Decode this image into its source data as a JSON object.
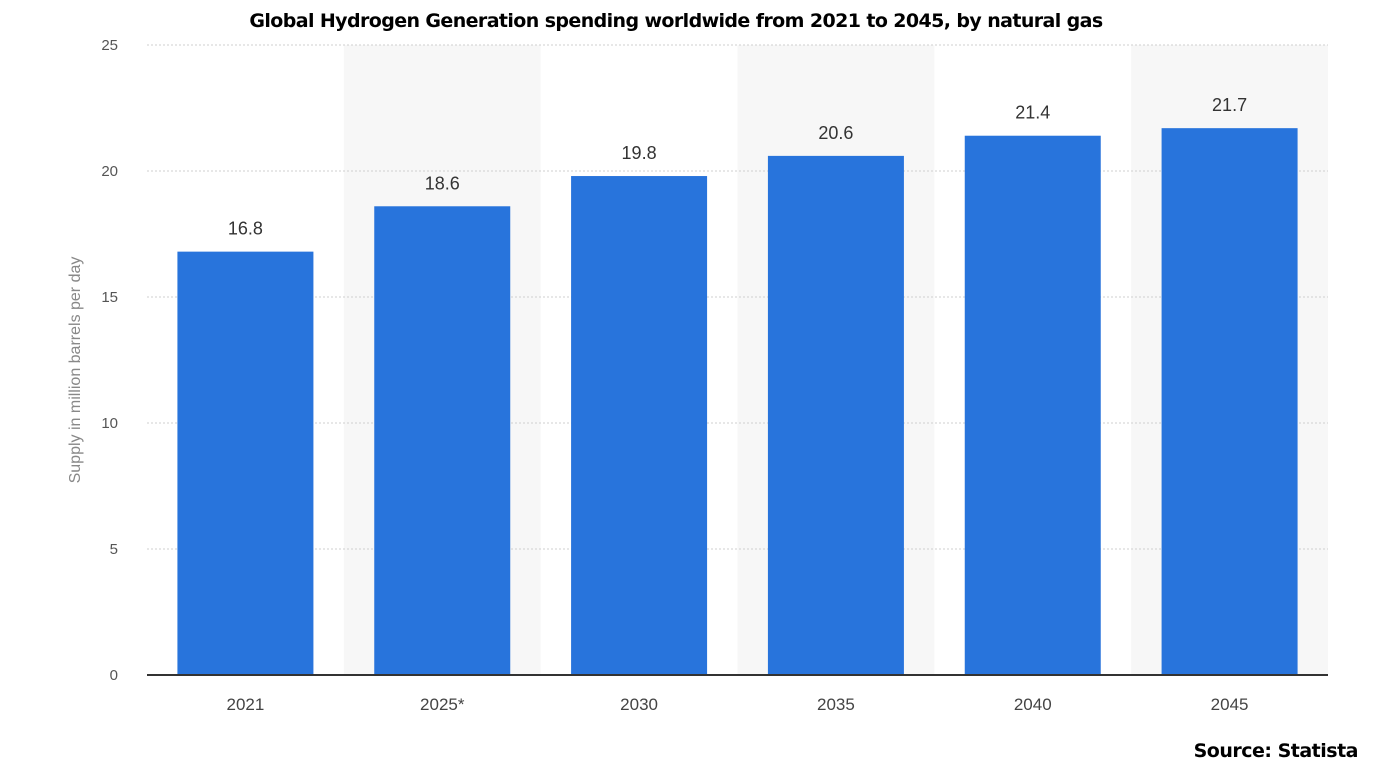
{
  "chart_data": {
    "type": "bar",
    "title": "Global Hydrogen Generation spending worldwide from 2021 to 2045, by natural gas",
    "xlabel": "",
    "ylabel": "Supply in million barrels per day",
    "categories": [
      "2021",
      "2025*",
      "2030",
      "2035",
      "2040",
      "2045"
    ],
    "values": [
      16.8,
      18.6,
      19.8,
      20.6,
      21.4,
      21.7
    ],
    "value_labels": [
      "16.8",
      "18.6",
      "19.8",
      "20.6",
      "21.4",
      "21.7"
    ],
    "ylim": [
      0,
      25
    ],
    "yticks": [
      0,
      5,
      10,
      15,
      20,
      25
    ],
    "grid": true,
    "legend": "none",
    "bar_color": "#2874dc",
    "band_color": "#f7f7f7",
    "source": "Source: Statista"
  }
}
